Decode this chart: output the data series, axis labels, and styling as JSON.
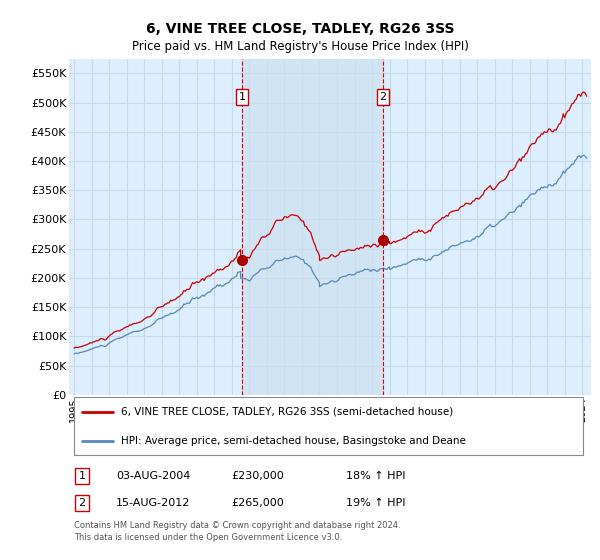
{
  "title": "6, VINE TREE CLOSE, TADLEY, RG26 3SS",
  "subtitle": "Price paid vs. HM Land Registry's House Price Index (HPI)",
  "ylabel_ticks": [
    "£0",
    "£50K",
    "£100K",
    "£150K",
    "£200K",
    "£250K",
    "£300K",
    "£350K",
    "£400K",
    "£450K",
    "£500K",
    "£550K"
  ],
  "ytick_values": [
    0,
    50000,
    100000,
    150000,
    200000,
    250000,
    300000,
    350000,
    400000,
    450000,
    500000,
    550000
  ],
  "ylim": [
    0,
    575000
  ],
  "xlim_start": 1994.7,
  "xlim_end": 2024.5,
  "background_color": "#ddeeff",
  "plot_bg_color": "#ddeeff",
  "grid_color": "#c8d8e8",
  "red_line_color": "#cc0000",
  "blue_line_color": "#5588bb",
  "vline_color": "#dd0000",
  "shade_color": "#cce0f0",
  "marker1_x": 2004.58,
  "marker1_y": 230000,
  "marker2_x": 2012.62,
  "marker2_y": 265000,
  "legend_label1": "6, VINE TREE CLOSE, TADLEY, RG26 3SS (semi-detached house)",
  "legend_label2": "HPI: Average price, semi-detached house, Basingstoke and Deane",
  "table_row1": [
    "1",
    "03-AUG-2004",
    "£230,000",
    "18% ↑ HPI"
  ],
  "table_row2": [
    "2",
    "15-AUG-2012",
    "£265,000",
    "19% ↑ HPI"
  ],
  "footnote": "Contains HM Land Registry data © Crown copyright and database right 2024.\nThis data is licensed under the Open Government Licence v3.0."
}
